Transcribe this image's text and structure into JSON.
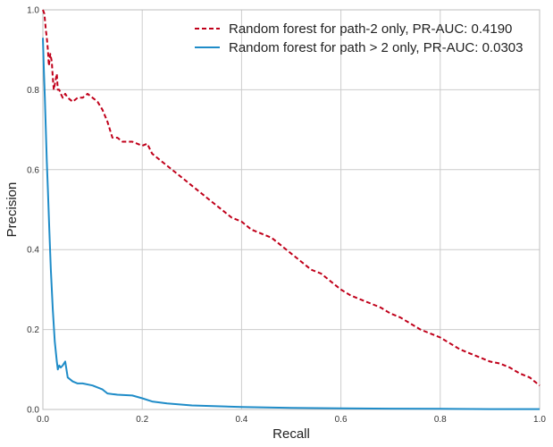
{
  "chart_data": {
    "type": "line",
    "xlabel": "Recall",
    "ylabel": "Precision",
    "xlim": [
      0,
      1
    ],
    "ylim": [
      0,
      1
    ],
    "xticks": [
      0.0,
      0.2,
      0.4,
      0.6,
      0.8,
      1.0
    ],
    "xtick_labels": [
      "0.0",
      "0.2",
      "0.4",
      "0.6",
      "0.8",
      "1.0"
    ],
    "yticks": [
      0.0,
      0.2,
      0.4,
      0.6,
      0.8,
      1.0
    ],
    "ytick_labels": [
      "0.0",
      "0.2",
      "0.4",
      "0.6",
      "0.8",
      "1.0"
    ],
    "grid": true,
    "legend_position": "top-right",
    "series": [
      {
        "name": "Random forest for path-2 only, PR-AUC: 0.4190",
        "color": "#c0001a",
        "style": "dashed",
        "x": [
          0.0,
          0.003,
          0.006,
          0.008,
          0.01,
          0.012,
          0.015,
          0.018,
          0.02,
          0.022,
          0.025,
          0.028,
          0.03,
          0.033,
          0.036,
          0.04,
          0.045,
          0.05,
          0.06,
          0.07,
          0.08,
          0.09,
          0.1,
          0.11,
          0.12,
          0.13,
          0.14,
          0.15,
          0.16,
          0.18,
          0.2,
          0.21,
          0.22,
          0.24,
          0.26,
          0.28,
          0.3,
          0.32,
          0.34,
          0.36,
          0.38,
          0.4,
          0.42,
          0.44,
          0.46,
          0.48,
          0.5,
          0.52,
          0.54,
          0.56,
          0.58,
          0.6,
          0.62,
          0.64,
          0.66,
          0.68,
          0.7,
          0.72,
          0.74,
          0.76,
          0.78,
          0.8,
          0.82,
          0.84,
          0.86,
          0.88,
          0.9,
          0.92,
          0.94,
          0.96,
          0.98,
          1.0
        ],
        "y": [
          1.0,
          0.99,
          0.95,
          0.93,
          0.9,
          0.86,
          0.89,
          0.87,
          0.83,
          0.8,
          0.82,
          0.84,
          0.8,
          0.8,
          0.79,
          0.78,
          0.79,
          0.78,
          0.77,
          0.78,
          0.78,
          0.79,
          0.78,
          0.77,
          0.75,
          0.72,
          0.68,
          0.68,
          0.67,
          0.67,
          0.66,
          0.665,
          0.64,
          0.62,
          0.6,
          0.58,
          0.56,
          0.54,
          0.52,
          0.5,
          0.48,
          0.47,
          0.45,
          0.44,
          0.43,
          0.41,
          0.39,
          0.37,
          0.35,
          0.34,
          0.32,
          0.3,
          0.285,
          0.275,
          0.265,
          0.255,
          0.24,
          0.23,
          0.215,
          0.2,
          0.19,
          0.18,
          0.165,
          0.15,
          0.14,
          0.13,
          0.12,
          0.115,
          0.105,
          0.09,
          0.08,
          0.06
        ]
      },
      {
        "name": "Random forest for path > 2 only, PR-AUC: 0.0303",
        "color": "#1f8cc8",
        "style": "solid",
        "x": [
          0.0,
          0.002,
          0.004,
          0.006,
          0.008,
          0.01,
          0.013,
          0.016,
          0.02,
          0.024,
          0.028,
          0.03,
          0.033,
          0.036,
          0.04,
          0.045,
          0.05,
          0.06,
          0.07,
          0.08,
          0.1,
          0.12,
          0.13,
          0.15,
          0.18,
          0.2,
          0.22,
          0.25,
          0.3,
          0.35,
          0.4,
          0.45,
          0.5,
          0.6,
          0.7,
          0.8,
          0.9,
          1.0
        ],
        "y": [
          0.93,
          0.85,
          0.78,
          0.7,
          0.62,
          0.55,
          0.45,
          0.35,
          0.25,
          0.17,
          0.12,
          0.1,
          0.11,
          0.105,
          0.11,
          0.12,
          0.08,
          0.07,
          0.065,
          0.065,
          0.06,
          0.05,
          0.04,
          0.037,
          0.035,
          0.028,
          0.02,
          0.015,
          0.01,
          0.008,
          0.006,
          0.005,
          0.004,
          0.003,
          0.002,
          0.0015,
          0.001,
          0.001
        ]
      }
    ]
  }
}
